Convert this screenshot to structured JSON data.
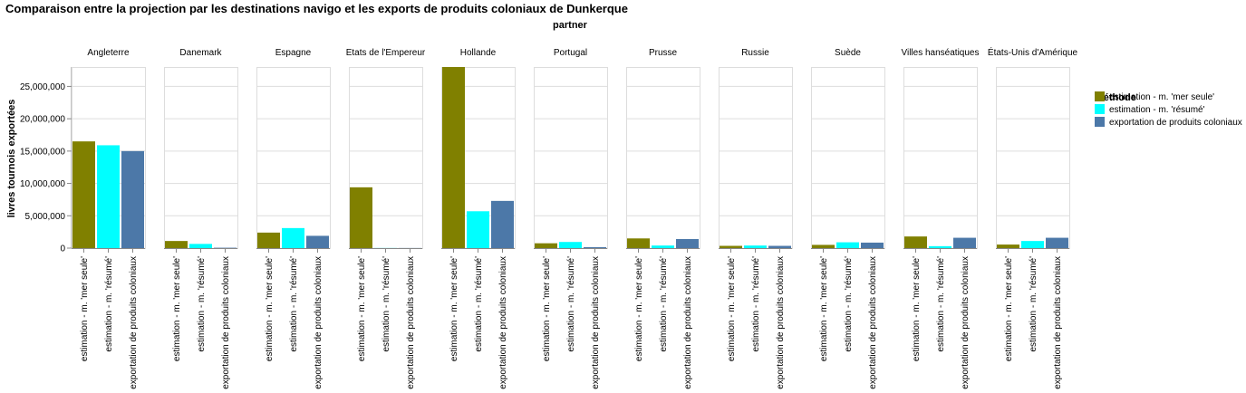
{
  "chart_data": {
    "type": "bar",
    "title": "Comparaison entre la projection par les destinations navigo et les exports de produits coloniaux de Dunkerque",
    "facet_title": "partner",
    "ylabel": "livres tournois exportées",
    "ylim": [
      0,
      28000000
    ],
    "yticks": [
      {
        "value": 0,
        "label": "0"
      },
      {
        "value": 5000000,
        "label": "5,000,000"
      },
      {
        "value": 10000000,
        "label": "10,000,000"
      },
      {
        "value": 15000000,
        "label": "15,000,000"
      },
      {
        "value": 20000000,
        "label": "20,000,000"
      },
      {
        "value": 25000000,
        "label": "25,000,000"
      }
    ],
    "grid": true,
    "legend": {
      "title": "méthode",
      "position": "right"
    },
    "categories": [
      "estimation - m. 'mer seule'",
      "estimation - m. 'résumé'",
      "exportation de produits coloniaux"
    ],
    "colors": [
      "#808000",
      "#00ffff",
      "#4c78a8"
    ],
    "partners": [
      {
        "name": "Angleterre",
        "values": [
          16500000,
          15900000,
          15000000
        ]
      },
      {
        "name": "Danemark",
        "values": [
          1100000,
          650000,
          60000
        ]
      },
      {
        "name": "Espagne",
        "values": [
          2400000,
          3100000,
          1900000
        ]
      },
      {
        "name": "Etats de l'Empereur",
        "values": [
          9400000,
          20000,
          20000
        ]
      },
      {
        "name": "Hollande",
        "values": [
          28000000,
          5700000,
          7300000
        ]
      },
      {
        "name": "Portugal",
        "values": [
          750000,
          950000,
          150000
        ]
      },
      {
        "name": "Prusse",
        "values": [
          1500000,
          400000,
          1400000
        ]
      },
      {
        "name": "Russie",
        "values": [
          350000,
          400000,
          350000
        ]
      },
      {
        "name": "Suède",
        "values": [
          500000,
          900000,
          850000
        ]
      },
      {
        "name": "Villes hanséatiques",
        "values": [
          1800000,
          300000,
          1600000
        ]
      },
      {
        "name": "États-Unis d'Amérique",
        "values": [
          550000,
          1100000,
          1600000
        ]
      }
    ]
  }
}
